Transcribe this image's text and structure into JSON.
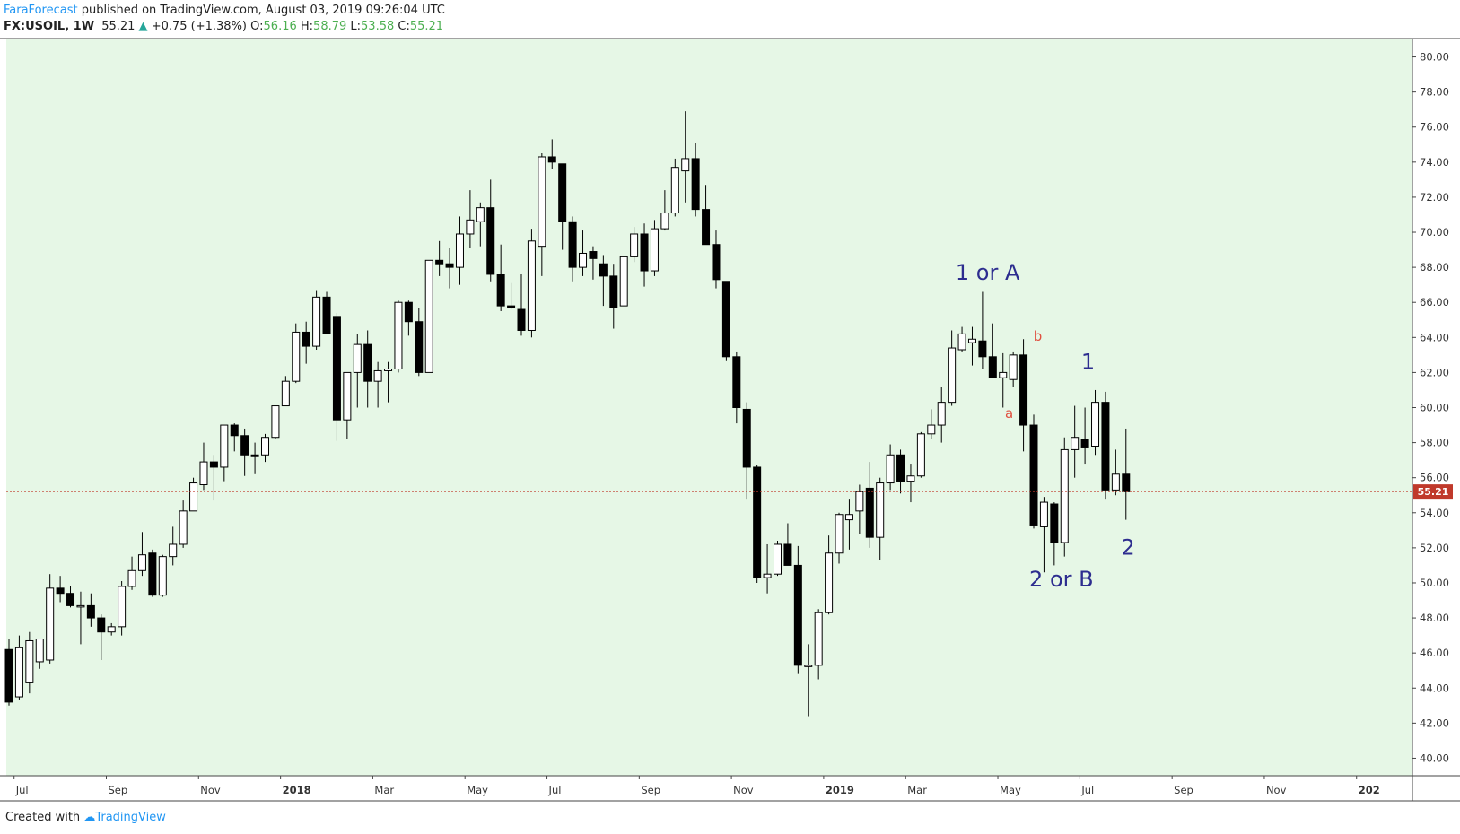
{
  "header": {
    "author": "FaraForecast",
    "published": "published on TradingView.com, August 03, 2019 09:26:04 UTC",
    "symbol": "FX:USOIL, 1W",
    "last": "55.21",
    "change": "+0.75 (+1.38%)",
    "o_label": "O:",
    "o_val": "56.16",
    "h_label": "H:",
    "h_val": "58.79",
    "l_label": "L:",
    "l_val": "53.58",
    "c_label": "C:",
    "c_val": "55.21"
  },
  "footer": {
    "created": "Created with",
    "brand": "TradingView"
  },
  "colors": {
    "background": "#e6f7e6",
    "up": "#ffffff",
    "down": "#000000",
    "wave_label": "#2d2d8f",
    "subwave_label": "#e05040",
    "price_line": "#c0392b"
  },
  "chart_data": {
    "type": "candlestick",
    "symbol": "FX:USOIL",
    "interval": "1W",
    "ylim": [
      39,
      81
    ],
    "y_ticks": [
      40,
      42,
      44,
      46,
      48,
      50,
      52,
      54,
      56,
      58,
      60,
      62,
      64,
      66,
      68,
      70,
      72,
      74,
      76,
      78,
      80
    ],
    "y_tick_labels": [
      "40.00",
      "42.00",
      "44.00",
      "46.00",
      "48.00",
      "50.00",
      "52.00",
      "54.00",
      "56.00",
      "58.00",
      "60.00",
      "62.00",
      "64.00",
      "66.00",
      "68.00",
      "70.00",
      "72.00",
      "74.00",
      "76.00",
      "78.00",
      "80.00"
    ],
    "x_labels": [
      {
        "label": "Jul",
        "bar": 0.5
      },
      {
        "label": "Sep",
        "bar": 9.5
      },
      {
        "label": "Nov",
        "bar": 18.5
      },
      {
        "label": "2018",
        "bar": 26.5
      },
      {
        "label": "Mar",
        "bar": 35.5
      },
      {
        "label": "May",
        "bar": 44.5
      },
      {
        "label": "Jul",
        "bar": 52.5
      },
      {
        "label": "Sep",
        "bar": 61.5
      },
      {
        "label": "Nov",
        "bar": 70.5
      },
      {
        "label": "2019",
        "bar": 79.5
      },
      {
        "label": "Mar",
        "bar": 87.5
      },
      {
        "label": "May",
        "bar": 96.5
      },
      {
        "label": "Jul",
        "bar": 104.5
      },
      {
        "label": "Sep",
        "bar": 113.5
      },
      {
        "label": "Nov",
        "bar": 122.5
      },
      {
        "label": "202",
        "bar": 131.5
      }
    ],
    "last_price": 55.21,
    "last_price_label": "55.21",
    "candles": [
      [
        46.2,
        46.8,
        43.0,
        43.2
      ],
      [
        43.5,
        47.0,
        43.3,
        46.3
      ],
      [
        44.3,
        47.2,
        43.7,
        46.7
      ],
      [
        45.5,
        46.8,
        45.1,
        46.8
      ],
      [
        45.6,
        50.5,
        45.4,
        49.7
      ],
      [
        49.7,
        50.4,
        48.9,
        49.4
      ],
      [
        49.4,
        49.8,
        48.6,
        48.7
      ],
      [
        48.7,
        49.5,
        46.5,
        48.7
      ],
      [
        48.7,
        49.4,
        47.5,
        48.0
      ],
      [
        48.0,
        48.2,
        45.6,
        47.2
      ],
      [
        47.2,
        47.7,
        47.0,
        47.5
      ],
      [
        47.5,
        50.1,
        47.0,
        49.8
      ],
      [
        49.8,
        51.5,
        49.6,
        50.7
      ],
      [
        50.7,
        52.9,
        50.4,
        51.6
      ],
      [
        51.7,
        51.9,
        49.2,
        49.3
      ],
      [
        49.3,
        51.6,
        49.2,
        51.5
      ],
      [
        51.5,
        53.2,
        51.0,
        52.2
      ],
      [
        52.2,
        54.7,
        52.0,
        54.1
      ],
      [
        54.1,
        56.0,
        54.1,
        55.7
      ],
      [
        55.6,
        58.0,
        55.3,
        56.9
      ],
      [
        56.9,
        57.3,
        54.7,
        56.6
      ],
      [
        56.6,
        59.0,
        55.8,
        59.0
      ],
      [
        59.0,
        59.1,
        57.5,
        58.4
      ],
      [
        58.4,
        58.8,
        56.1,
        57.3
      ],
      [
        57.3,
        58.0,
        56.2,
        57.2
      ],
      [
        57.3,
        58.5,
        56.9,
        58.3
      ],
      [
        58.3,
        60.1,
        58.2,
        60.1
      ],
      [
        60.1,
        61.8,
        60.1,
        61.5
      ],
      [
        61.5,
        64.8,
        61.4,
        64.3
      ],
      [
        64.3,
        64.9,
        62.5,
        63.5
      ],
      [
        63.5,
        66.7,
        63.3,
        66.3
      ],
      [
        66.3,
        66.6,
        64.2,
        64.2
      ],
      [
        65.2,
        65.4,
        58.1,
        59.3
      ],
      [
        59.3,
        61.9,
        58.2,
        62.0
      ],
      [
        62.0,
        64.2,
        60.0,
        63.6
      ],
      [
        63.6,
        64.4,
        60.0,
        61.5
      ],
      [
        61.5,
        62.6,
        60.0,
        62.1
      ],
      [
        62.1,
        62.6,
        60.3,
        62.2
      ],
      [
        62.2,
        66.1,
        62.0,
        66.0
      ],
      [
        66.0,
        66.1,
        64.1,
        64.9
      ],
      [
        64.9,
        65.7,
        61.8,
        62.0
      ],
      [
        62.0,
        68.4,
        62.0,
        68.4
      ],
      [
        68.4,
        69.5,
        67.5,
        68.2
      ],
      [
        68.2,
        69.1,
        66.8,
        68.0
      ],
      [
        68.0,
        70.9,
        67.0,
        69.9
      ],
      [
        69.9,
        72.4,
        69.1,
        70.7
      ],
      [
        70.6,
        71.7,
        69.2,
        71.4
      ],
      [
        71.4,
        73.0,
        67.2,
        67.6
      ],
      [
        67.6,
        69.3,
        65.5,
        65.8
      ],
      [
        65.8,
        67.1,
        65.6,
        65.7
      ],
      [
        65.6,
        67.6,
        64.1,
        64.4
      ],
      [
        64.4,
        70.2,
        64.0,
        69.5
      ],
      [
        69.2,
        74.5,
        67.5,
        74.3
      ],
      [
        74.3,
        75.3,
        73.6,
        74.0
      ],
      [
        73.9,
        73.9,
        69.0,
        70.6
      ],
      [
        70.6,
        70.9,
        67.2,
        68.0
      ],
      [
        68.0,
        70.1,
        67.5,
        68.8
      ],
      [
        68.9,
        69.2,
        67.3,
        68.5
      ],
      [
        68.2,
        68.7,
        65.8,
        67.5
      ],
      [
        67.5,
        68.2,
        64.5,
        65.7
      ],
      [
        65.8,
        68.4,
        65.8,
        68.6
      ],
      [
        68.6,
        70.3,
        68.3,
        69.9
      ],
      [
        69.9,
        70.5,
        66.9,
        67.8
      ],
      [
        67.8,
        70.7,
        67.5,
        70.2
      ],
      [
        70.2,
        72.4,
        70.1,
        71.1
      ],
      [
        71.1,
        74.2,
        70.9,
        73.7
      ],
      [
        73.5,
        76.9,
        71.7,
        74.2
      ],
      [
        74.2,
        75.1,
        70.9,
        71.3
      ],
      [
        71.3,
        72.7,
        69.6,
        69.3
      ],
      [
        69.3,
        70.1,
        66.8,
        67.3
      ],
      [
        67.2,
        67.2,
        62.7,
        62.9
      ],
      [
        62.9,
        63.2,
        59.1,
        60.0
      ],
      [
        59.9,
        60.3,
        54.8,
        56.6
      ],
      [
        56.6,
        56.7,
        50.0,
        50.3
      ],
      [
        50.3,
        52.2,
        49.4,
        50.5
      ],
      [
        50.5,
        52.4,
        50.4,
        52.2
      ],
      [
        52.2,
        53.4,
        51.2,
        51.0
      ],
      [
        51.0,
        52.1,
        44.8,
        45.3
      ],
      [
        45.3,
        46.5,
        42.4,
        45.3
      ],
      [
        45.3,
        48.5,
        44.5,
        48.3
      ],
      [
        48.3,
        52.7,
        48.2,
        51.7
      ],
      [
        51.7,
        54.0,
        51.1,
        53.9
      ],
      [
        53.6,
        54.8,
        51.9,
        53.9
      ],
      [
        54.1,
        55.6,
        52.8,
        55.2
      ],
      [
        55.4,
        56.9,
        52.0,
        52.6
      ],
      [
        52.6,
        56.0,
        51.3,
        55.7
      ],
      [
        55.7,
        57.9,
        55.3,
        57.3
      ],
      [
        57.3,
        57.6,
        55.1,
        55.8
      ],
      [
        55.8,
        56.8,
        54.6,
        56.1
      ],
      [
        56.1,
        58.6,
        56.0,
        58.5
      ],
      [
        58.5,
        59.9,
        58.2,
        59.0
      ],
      [
        59.0,
        61.2,
        58.0,
        60.3
      ],
      [
        60.3,
        64.4,
        60.1,
        63.4
      ],
      [
        63.3,
        64.6,
        63.2,
        64.2
      ],
      [
        63.7,
        64.6,
        62.4,
        63.9
      ],
      [
        63.8,
        66.6,
        62.2,
        62.9
      ],
      [
        62.9,
        64.8,
        62.0,
        61.7
      ],
      [
        61.7,
        63.1,
        60.0,
        62.0
      ],
      [
        61.6,
        63.2,
        61.2,
        63.0
      ],
      [
        63.0,
        63.9,
        57.5,
        59.0
      ],
      [
        59.0,
        59.6,
        53.1,
        53.3
      ],
      [
        53.2,
        54.9,
        50.6,
        54.6
      ],
      [
        54.5,
        54.6,
        51.0,
        52.3
      ],
      [
        52.3,
        58.3,
        51.5,
        57.6
      ],
      [
        57.6,
        60.1,
        56.0,
        58.3
      ],
      [
        58.2,
        60.0,
        56.8,
        57.7
      ],
      [
        57.8,
        61.0,
        57.3,
        60.3
      ],
      [
        60.3,
        60.9,
        54.8,
        55.3
      ],
      [
        55.3,
        57.6,
        55.0,
        56.2
      ],
      [
        56.2,
        58.8,
        53.6,
        55.2
      ]
    ],
    "annotations": [
      {
        "text": "1 or A",
        "bar": 95.5,
        "price": 67.3,
        "kind": "wave"
      },
      {
        "text": "b",
        "bar": 100.4,
        "price": 63.8,
        "kind": "subwave"
      },
      {
        "text": "a",
        "bar": 97.6,
        "price": 59.4,
        "kind": "subwave"
      },
      {
        "text": "1",
        "bar": 105.3,
        "price": 62.2,
        "kind": "wave"
      },
      {
        "text": "2",
        "bar": 109.2,
        "price": 51.6,
        "kind": "wave"
      },
      {
        "text": "2 or B",
        "bar": 102.7,
        "price": 49.8,
        "kind": "wave"
      }
    ]
  }
}
